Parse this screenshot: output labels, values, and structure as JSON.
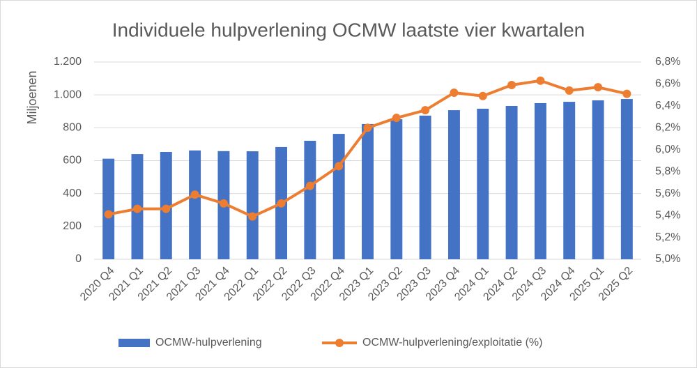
{
  "chart_data": {
    "type": "bar_line",
    "title": "Individuele hulpverlening OCMW laatste vier kwartalen",
    "ylabel": "Miljoenen",
    "categories": [
      "2020 Q4",
      "2021 Q1",
      "2021 Q2",
      "2021 Q3",
      "2021 Q4",
      "2022 Q1",
      "2022 Q2",
      "2022 Q3",
      "2022 Q4",
      "2023 Q1",
      "2023 Q2",
      "2023 Q3",
      "2023 Q4",
      "2024 Q1",
      "2024 Q2",
      "2024 Q3",
      "2024 Q4",
      "2025 Q1",
      "2025 Q2"
    ],
    "series": [
      {
        "name": "OCMW-hulpverlening",
        "color": "#4472c4",
        "type": "bar",
        "values": [
          612,
          640,
          653,
          662,
          658,
          657,
          683,
          721,
          763,
          823,
          852,
          874,
          907,
          916,
          933,
          950,
          958,
          967,
          975
        ]
      },
      {
        "name": "OCMW-hulpverlening/exploitatie (%)",
        "color": "#ed7d31",
        "type": "line",
        "axis": "y2",
        "values": [
          5.41,
          5.46,
          5.46,
          5.59,
          5.51,
          5.39,
          5.51,
          5.67,
          5.85,
          6.2,
          6.29,
          6.36,
          6.52,
          6.49,
          6.59,
          6.63,
          6.54,
          6.57,
          6.51
        ]
      }
    ],
    "ylim": [
      0,
      1200
    ],
    "yticks": [
      0,
      200,
      400,
      600,
      800,
      {
        "value": 1000,
        "label": "1.000"
      },
      {
        "value": 1200,
        "label": "1.200"
      }
    ],
    "y2lim": [
      5.0,
      6.8
    ],
    "y2ticks": [
      {
        "value": 5.0,
        "label": "5,0%"
      },
      {
        "value": 5.2,
        "label": "5,2%"
      },
      {
        "value": 5.4,
        "label": "5,4%"
      },
      {
        "value": 5.6,
        "label": "5,6%"
      },
      {
        "value": 5.8,
        "label": "5,8%"
      },
      {
        "value": 6.0,
        "label": "6,0%"
      },
      {
        "value": 6.2,
        "label": "6,2%"
      },
      {
        "value": 6.4,
        "label": "6,4%"
      },
      {
        "value": 6.6,
        "label": "6,6%"
      },
      {
        "value": 6.8,
        "label": "6,8%"
      }
    ],
    "grid": true,
    "legend": "bottom"
  }
}
